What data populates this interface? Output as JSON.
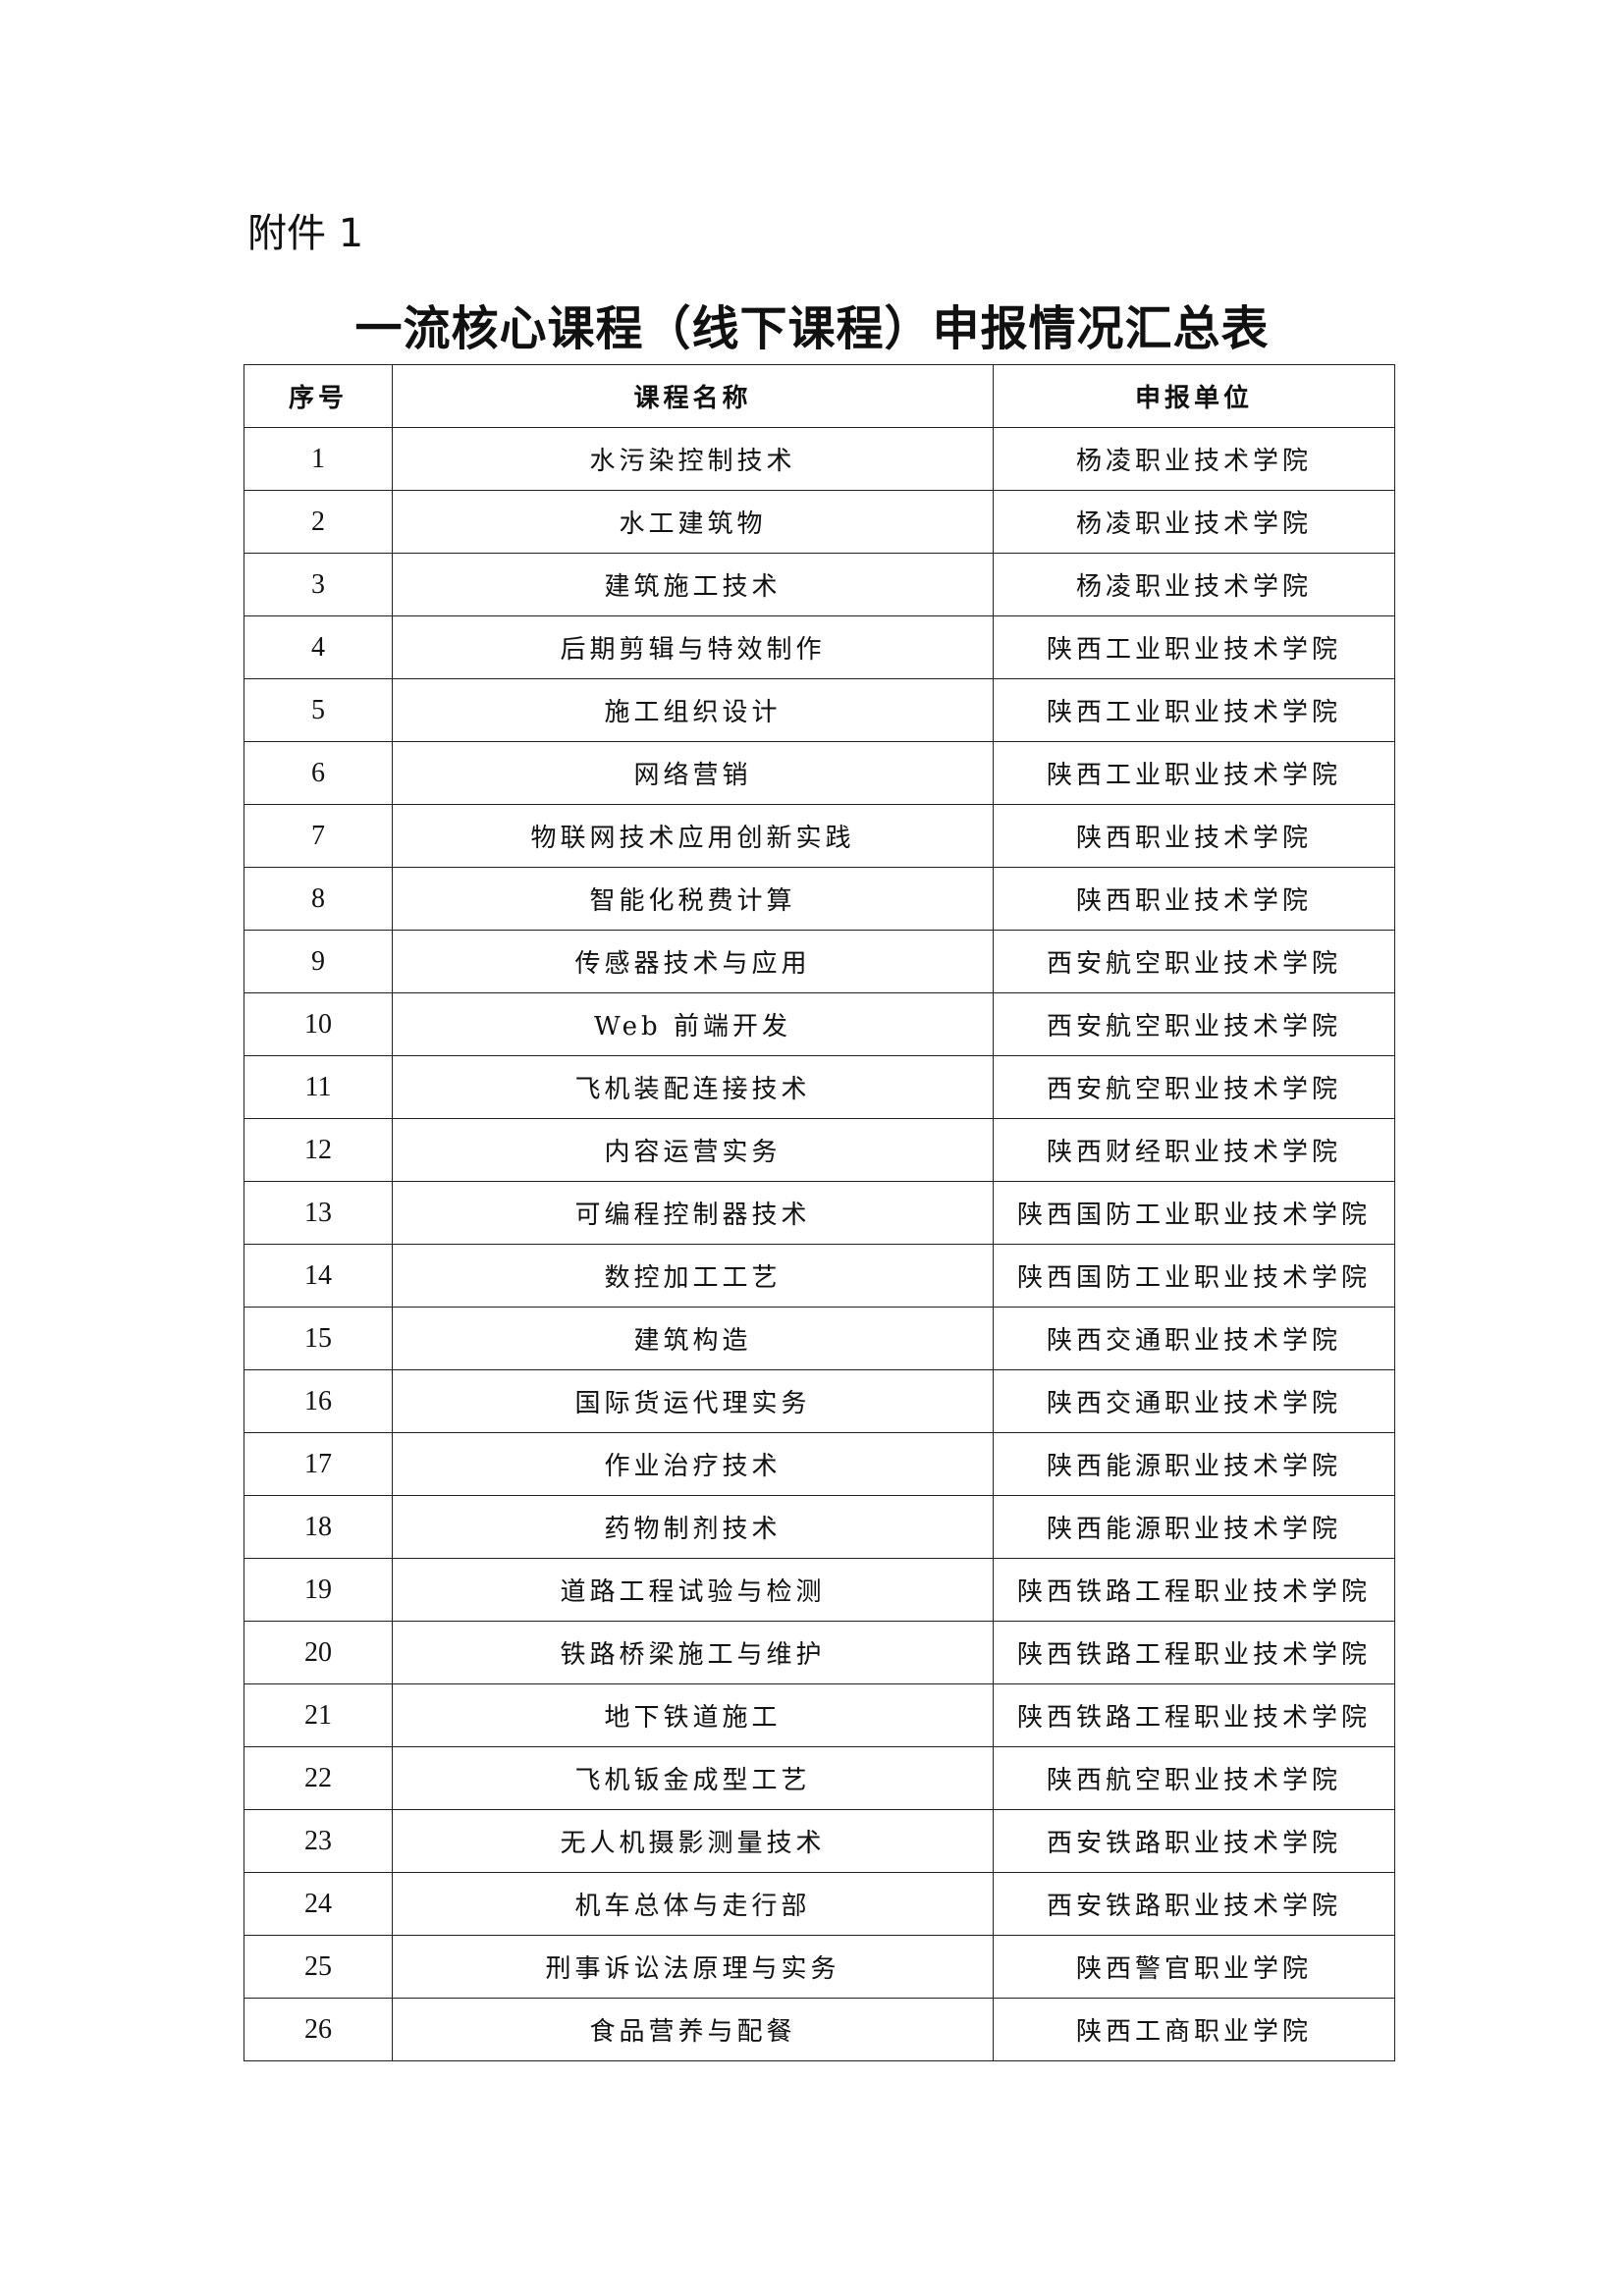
{
  "attachment_label": "附件 1",
  "title": "一流核心课程（线下课程）申报情况汇总表",
  "table": {
    "headers": [
      "序号",
      "课程名称",
      "申报单位"
    ],
    "rows": [
      [
        "1",
        "水污染控制技术",
        "杨凌职业技术学院"
      ],
      [
        "2",
        "水工建筑物",
        "杨凌职业技术学院"
      ],
      [
        "3",
        "建筑施工技术",
        "杨凌职业技术学院"
      ],
      [
        "4",
        "后期剪辑与特效制作",
        "陕西工业职业技术学院"
      ],
      [
        "5",
        "施工组织设计",
        "陕西工业职业技术学院"
      ],
      [
        "6",
        "网络营销",
        "陕西工业职业技术学院"
      ],
      [
        "7",
        "物联网技术应用创新实践",
        "陕西职业技术学院"
      ],
      [
        "8",
        "智能化税费计算",
        "陕西职业技术学院"
      ],
      [
        "9",
        "传感器技术与应用",
        "西安航空职业技术学院"
      ],
      [
        "10",
        "Web 前端开发",
        "西安航空职业技术学院"
      ],
      [
        "11",
        "飞机装配连接技术",
        "西安航空职业技术学院"
      ],
      [
        "12",
        "内容运营实务",
        "陕西财经职业技术学院"
      ],
      [
        "13",
        "可编程控制器技术",
        "陕西国防工业职业技术学院"
      ],
      [
        "14",
        "数控加工工艺",
        "陕西国防工业职业技术学院"
      ],
      [
        "15",
        "建筑构造",
        "陕西交通职业技术学院"
      ],
      [
        "16",
        "国际货运代理实务",
        "陕西交通职业技术学院"
      ],
      [
        "17",
        "作业治疗技术",
        "陕西能源职业技术学院"
      ],
      [
        "18",
        "药物制剂技术",
        "陕西能源职业技术学院"
      ],
      [
        "19",
        "道路工程试验与检测",
        "陕西铁路工程职业技术学院"
      ],
      [
        "20",
        "铁路桥梁施工与维护",
        "陕西铁路工程职业技术学院"
      ],
      [
        "21",
        "地下铁道施工",
        "陕西铁路工程职业技术学院"
      ],
      [
        "22",
        "飞机钣金成型工艺",
        "陕西航空职业技术学院"
      ],
      [
        "23",
        "无人机摄影测量技术",
        "西安铁路职业技术学院"
      ],
      [
        "24",
        "机车总体与走行部",
        "西安铁路职业技术学院"
      ],
      [
        "25",
        "刑事诉讼法原理与实务",
        "陕西警官职业学院"
      ],
      [
        "26",
        "食品营养与配餐",
        "陕西工商职业学院"
      ]
    ]
  }
}
